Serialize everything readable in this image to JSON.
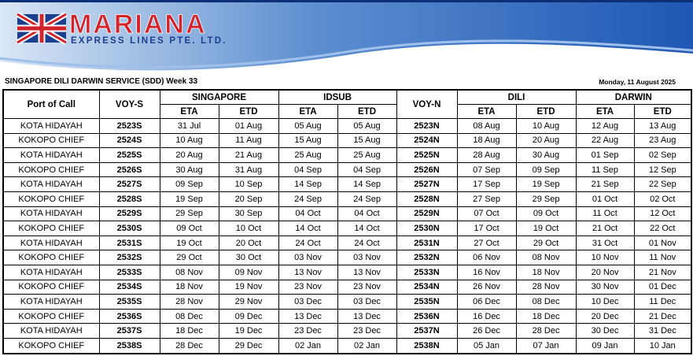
{
  "header": {
    "company": "MARIANA",
    "subtitle": "EXPRESS LINES PTE. LTD."
  },
  "title": "SINGAPORE DILI DARWIN SERVICE (SDD) Week 33",
  "date": "Monday, 11 August 2025",
  "table": {
    "columns": [
      {
        "label": "Port of Call"
      },
      {
        "label": "VOY-S",
        "voy": true
      },
      {
        "label": "SINGAPORE",
        "sub": [
          "ETA",
          "ETD"
        ]
      },
      {
        "label": "IDSUB",
        "sub": [
          "ETA",
          "ETD"
        ]
      },
      {
        "label": "VOY-N",
        "voy": true
      },
      {
        "label": "DILI",
        "sub": [
          "ETA",
          "ETD"
        ]
      },
      {
        "label": "DARWIN",
        "sub": [
          "ETA",
          "ETD"
        ]
      }
    ],
    "rows": [
      [
        "KOTA HIDAYAH",
        "2523S",
        "31 Jul",
        "01 Aug",
        "05 Aug",
        "05 Aug",
        "2523N",
        "08 Aug",
        "10 Aug",
        "12 Aug",
        "13 Aug"
      ],
      [
        "KOKOPO CHIEF",
        "2524S",
        "10 Aug",
        "11 Aug",
        "15 Aug",
        "15 Aug",
        "2524N",
        "18 Aug",
        "20 Aug",
        "22 Aug",
        "23 Aug"
      ],
      [
        "KOTA HIDAYAH",
        "2525S",
        "20 Aug",
        "21 Aug",
        "25 Aug",
        "25 Aug",
        "2525N",
        "28 Aug",
        "30 Aug",
        "01 Sep",
        "02 Sep"
      ],
      [
        "KOKOPO CHIEF",
        "2526S",
        "30 Aug",
        "31 Aug",
        "04 Sep",
        "04 Sep",
        "2526N",
        "07 Sep",
        "09 Sep",
        "11 Sep",
        "12 Sep"
      ],
      [
        "KOTA HIDAYAH",
        "2527S",
        "09 Sep",
        "10 Sep",
        "14 Sep",
        "14 Sep",
        "2527N",
        "17 Sep",
        "19 Sep",
        "21 Sep",
        "22 Sep"
      ],
      [
        "KOKOPO CHIEF",
        "2528S",
        "19 Sep",
        "20 Sep",
        "24 Sep",
        "24 Sep",
        "2528N",
        "27 Sep",
        "29 Sep",
        "01 Oct",
        "02 Oct"
      ],
      [
        "KOTA HIDAYAH",
        "2529S",
        "29 Sep",
        "30 Sep",
        "04 Oct",
        "04 Oct",
        "2529N",
        "07 Oct",
        "09 Oct",
        "11 Oct",
        "12 Oct"
      ],
      [
        "KOKOPO CHIEF",
        "2530S",
        "09 Oct",
        "10 Oct",
        "14 Oct",
        "14 Oct",
        "2530N",
        "17 Oct",
        "19 Oct",
        "21 Oct",
        "22 Oct"
      ],
      [
        "KOTA HIDAYAH",
        "2531S",
        "19 Oct",
        "20 Oct",
        "24 Oct",
        "24 Oct",
        "2531N",
        "27 Oct",
        "29 Oct",
        "31 Oct",
        "01 Nov"
      ],
      [
        "KOKOPO CHIEF",
        "2532S",
        "29 Oct",
        "30 Oct",
        "03 Nov",
        "03 Nov",
        "2532N",
        "06 Nov",
        "08 Nov",
        "10 Nov",
        "11 Nov"
      ],
      [
        "KOTA HIDAYAH",
        "2533S",
        "08 Nov",
        "09 Nov",
        "13 Nov",
        "13 Nov",
        "2533N",
        "16 Nov",
        "18 Nov",
        "20 Nov",
        "21 Nov"
      ],
      [
        "KOKOPO CHIEF",
        "2534S",
        "18 Nov",
        "19 Nov",
        "23 Nov",
        "23 Nov",
        "2534N",
        "26 Nov",
        "28 Nov",
        "30 Nov",
        "01 Dec"
      ],
      [
        "KOTA HIDAYAH",
        "2535S",
        "28 Nov",
        "29 Nov",
        "03 Dec",
        "03 Dec",
        "2535N",
        "06 Dec",
        "08 Dec",
        "10 Dec",
        "11 Dec"
      ],
      [
        "KOKOPO CHIEF",
        "2536S",
        "08 Dec",
        "09 Dec",
        "13 Dec",
        "13 Dec",
        "2536N",
        "16 Dec",
        "18 Dec",
        "20 Dec",
        "21 Dec"
      ],
      [
        "KOTA HIDAYAH",
        "2537S",
        "18 Dec",
        "19 Dec",
        "23 Dec",
        "23 Dec",
        "2537N",
        "26 Dec",
        "28 Dec",
        "30 Dec",
        "31 Dec"
      ],
      [
        "KOKOPO CHIEF",
        "2538S",
        "28 Dec",
        "29 Dec",
        "02 Jan",
        "02 Jan",
        "2538N",
        "05 Jan",
        "07 Jan",
        "09 Jan",
        "10 Jan"
      ]
    ]
  }
}
